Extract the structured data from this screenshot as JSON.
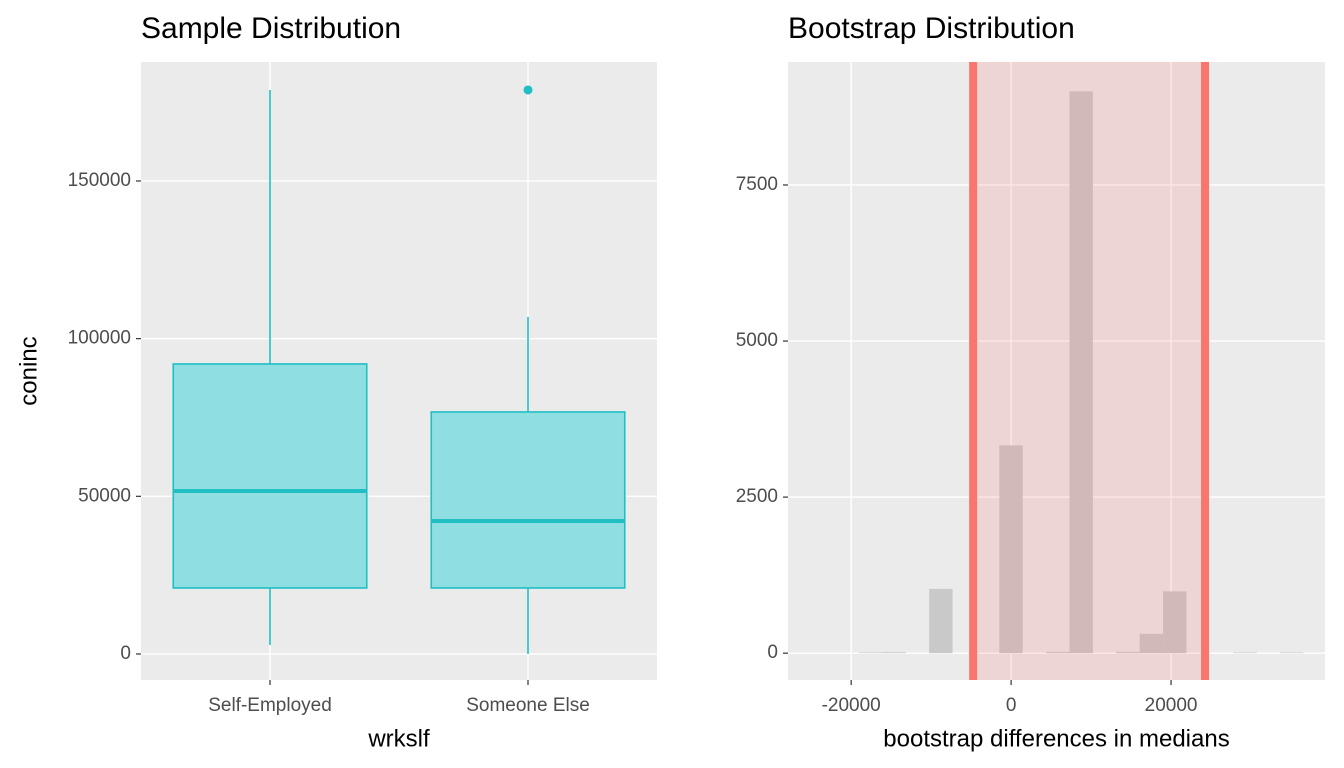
{
  "chart_data": [
    {
      "type": "boxplot",
      "title": "Sample Distribution",
      "x_label": "wrkslf",
      "y_label": "coninc",
      "categories": [
        "Self-Employed",
        "Someone Else"
      ],
      "low": [
        2850,
        0
      ],
      "q1": [
        20930,
        20930
      ],
      "median": [
        51690,
        42180
      ],
      "q3": [
        91970,
        76750
      ],
      "high": [
        178860,
        106880
      ],
      "outliers": [
        [],
        [
          178860
        ]
      ],
      "fill": "#8fdfe2",
      "color": "#1fbfc4",
      "ylim": [
        -8250,
        187730
      ],
      "yticks": [
        0,
        50000,
        100000,
        150000
      ],
      "grid": true
    },
    {
      "type": "histogram",
      "title": "Bootstrap Distribution",
      "x_label": "bootstrap differences in medians",
      "bins": [
        -21950,
        -19025,
        -16100,
        -13175,
        -10250,
        -7325,
        -4400,
        -1475,
        1450,
        4375,
        7300,
        10225,
        13150,
        16075,
        19000,
        21925,
        24850,
        27775,
        30700,
        33625,
        36550
      ],
      "counts": [
        0,
        10,
        15,
        0,
        1030,
        0,
        0,
        3330,
        0,
        20,
        9000,
        0,
        20,
        310,
        990,
        0,
        0,
        10,
        0,
        10
      ],
      "color": "#c9c9c9",
      "ci": [
        -4750,
        24250
      ],
      "ci_color": "#f8766d",
      "xlim": [
        -27900,
        39250
      ],
      "xticks": [
        -20000,
        0,
        20000
      ],
      "ylim": [
        -430,
        9470
      ],
      "yticks": [
        0,
        2500,
        5000,
        7500
      ],
      "grid": true
    }
  ]
}
